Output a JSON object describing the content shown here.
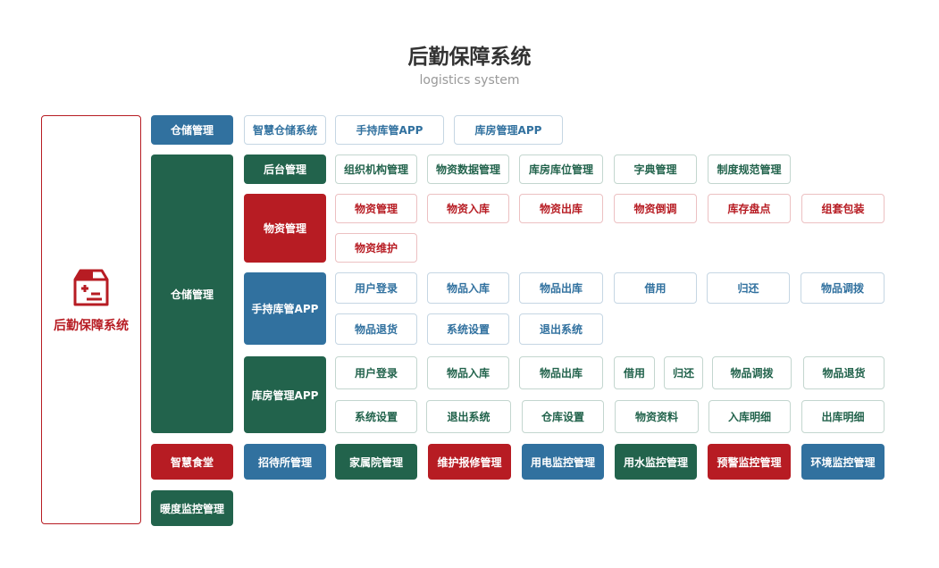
{
  "header": {
    "title": "后勤保障系统",
    "subtitle": "logistics system"
  },
  "root": {
    "label": "后勤保障系统",
    "icon": "medical-box-icon"
  },
  "colors": {
    "blue": "#31719f",
    "green": "#22634c",
    "red": "#b71c23"
  },
  "storage_top": {
    "label": "仓储管理",
    "items": [
      "智慧仓储系统",
      "手持库管APP",
      "库房管理APP"
    ]
  },
  "storage": {
    "label": "仓储管理",
    "backend": {
      "label": "后台管理",
      "items": [
        "组织机构管理",
        "物资数据管理",
        "库房库位管理",
        "字典管理",
        "制度规范管理"
      ]
    },
    "materials": {
      "label": "物资管理",
      "items": [
        "物资管理",
        "物资入库",
        "物资出库",
        "物资倒调",
        "库存盘点",
        "组套包装",
        "物资维护"
      ]
    },
    "handheld": {
      "label": "手持库管APP",
      "items": [
        "用户登录",
        "物品入库",
        "物品出库",
        "借用",
        "归还",
        "物品调拨",
        "物品退货",
        "系统设置",
        "退出系统"
      ]
    },
    "warehouse": {
      "label": "库房管理APP",
      "items": [
        "用户登录",
        "物品入库",
        "物品出库",
        "借用",
        "归还",
        "物品调拨",
        "物品退货",
        "系统设置",
        "退出系统",
        "仓库设置",
        "物资资料",
        "入库明细",
        "出库明细"
      ]
    }
  },
  "bottom": {
    "items": [
      "智慧食堂",
      "招待所管理",
      "家属院管理",
      "维护报修管理",
      "用电监控管理",
      "用水监控管理",
      "预警监控管理",
      "环境监控管理",
      "暖度监控管理"
    ]
  }
}
